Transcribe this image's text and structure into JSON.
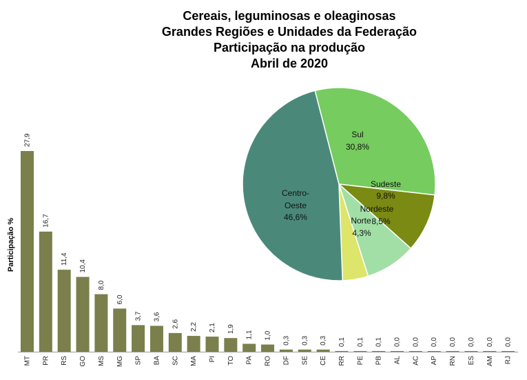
{
  "title_lines": [
    "Cereais, leguminosas  e oleaginosas",
    "Grandes Regiões e Unidades  da Federação",
    "Participação  na produção",
    "Abril de 2020"
  ],
  "chart_data": [
    {
      "type": "bar",
      "ylabel": "Participação %",
      "ylim": [
        0,
        30
      ],
      "color": "#7a7f4c",
      "categories": [
        "MT",
        "PR",
        "RS",
        "GO",
        "MS",
        "MG",
        "SP",
        "BA",
        "SC",
        "MA",
        "PI",
        "TO",
        "PA",
        "RO",
        "DF",
        "SE",
        "CE",
        "RR",
        "PE",
        "PB",
        "AL",
        "AC",
        "AP",
        "RN",
        "ES",
        "AM",
        "RJ"
      ],
      "values": [
        27.9,
        16.7,
        11.4,
        10.4,
        8.0,
        6.0,
        3.7,
        3.6,
        2.6,
        2.2,
        2.1,
        1.9,
        1.1,
        1.0,
        0.3,
        0.3,
        0.3,
        0.1,
        0.1,
        0.1,
        0.0,
        0.0,
        0.0,
        0.0,
        0.0,
        0.0,
        0.0
      ],
      "value_labels": [
        "27,9",
        "16,7",
        "11,4",
        "10,4",
        "8,0",
        "6,0",
        "3,7",
        "3,6",
        "2,6",
        "2,2",
        "2,1",
        "1,9",
        "1,1",
        "1,0",
        "0,3",
        "0,3",
        "0,3",
        "0,1",
        "0,1",
        "0,1",
        "0,0",
        "0,0",
        "0,0",
        "0,0",
        "0,0",
        "0,0",
        "0,0"
      ]
    },
    {
      "type": "pie",
      "slices": [
        {
          "name": "Sul",
          "value": 30.8,
          "label": "30,8%",
          "color": "#76cc5f"
        },
        {
          "name": "Sudeste",
          "value": 9.8,
          "label": "9,8%",
          "color": "#7a8a12"
        },
        {
          "name": "Nordeste",
          "value": 8.5,
          "label": "8,5%",
          "color": "#a2dfa6"
        },
        {
          "name": "Norte",
          "value": 4.3,
          "label": "4,3%",
          "color": "#dde56a"
        },
        {
          "name": "Centro-Oeste",
          "value": 46.6,
          "label": "46,6%",
          "color": "#4a897a"
        }
      ]
    }
  ]
}
